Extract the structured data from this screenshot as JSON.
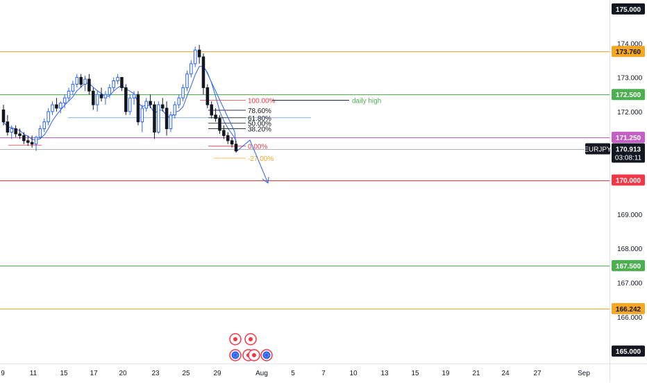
{
  "chart_data": {
    "type": "candlestick",
    "symbol": "EURJPY",
    "current_price": "170.913",
    "countdown": "03:08:11",
    "y_axis": {
      "ylim": [
        164.8,
        175.1
      ],
      "ticks": [
        "174.000",
        "173.000",
        "172.000",
        "169.000",
        "168.000",
        "167.000",
        "166.000"
      ]
    },
    "x_axis": {
      "ticks": [
        "9",
        "11",
        "15",
        "17",
        "20",
        "23",
        "25",
        "29",
        "Aug",
        "5",
        "7",
        "10",
        "13",
        "15",
        "19",
        "21",
        "24",
        "27",
        "Sep"
      ]
    },
    "price_levels": [
      {
        "price": 175.0,
        "label": "175.000",
        "color": "#131722",
        "line": false
      },
      {
        "price": 173.76,
        "label": "173.760",
        "color": "#f5a623",
        "line": true
      },
      {
        "price": 172.5,
        "label": "172.500",
        "color": "#4caf50",
        "line": true
      },
      {
        "price": 171.25,
        "label": "171.250",
        "color": "#c55fc5",
        "line": true
      },
      {
        "price": 170.0,
        "label": "170.000",
        "color": "#f23645",
        "line": true
      },
      {
        "price": 167.5,
        "label": "167.500",
        "color": "#4caf50",
        "line": true
      },
      {
        "price": 166.242,
        "label": "166.242",
        "color": "#f5a623",
        "line": true
      },
      {
        "price": 165.0,
        "label": "165.000",
        "color": "#131722",
        "line": false
      }
    ],
    "fibonacci": [
      {
        "label": "100.00%",
        "price": 172.33,
        "color": "#f23645"
      },
      {
        "label": "78.60%",
        "price": 172.04,
        "color": "#131722"
      },
      {
        "label": "61.80%",
        "price": 171.82,
        "color": "#131722"
      },
      {
        "label": "50.00%",
        "price": 171.66,
        "color": "#131722"
      },
      {
        "label": "38.20%",
        "price": 171.5,
        "color": "#131722"
      },
      {
        "label": "0.00%",
        "price": 170.99,
        "color": "#f23645"
      },
      {
        "label": "-27.00%",
        "price": 170.64,
        "color": "#f5a623"
      }
    ],
    "annotation": "daily high",
    "candles": [
      [
        172.05,
        172.2,
        171.6,
        171.7
      ],
      [
        171.7,
        171.9,
        171.3,
        171.4
      ],
      [
        171.4,
        171.6,
        171.2,
        171.5
      ],
      [
        171.5,
        171.6,
        171.25,
        171.35
      ],
      [
        171.35,
        171.5,
        171.2,
        171.3
      ],
      [
        171.3,
        171.4,
        171.05,
        171.15
      ],
      [
        171.15,
        171.3,
        171.0,
        171.1
      ],
      [
        171.1,
        171.3,
        170.95,
        171.05
      ],
      [
        171.05,
        171.3,
        170.85,
        171.25
      ],
      [
        171.25,
        171.6,
        171.2,
        171.5
      ],
      [
        171.5,
        171.8,
        171.4,
        171.7
      ],
      [
        171.7,
        172.1,
        171.6,
        172.0
      ],
      [
        172.0,
        172.3,
        171.9,
        172.2
      ],
      [
        172.2,
        172.4,
        172.0,
        172.1
      ],
      [
        172.1,
        172.3,
        171.95,
        172.25
      ],
      [
        172.25,
        172.5,
        172.1,
        172.4
      ],
      [
        172.4,
        172.7,
        172.3,
        172.6
      ],
      [
        172.6,
        172.9,
        172.5,
        172.8
      ],
      [
        172.8,
        173.1,
        172.7,
        173.0
      ],
      [
        173.0,
        173.1,
        172.7,
        172.8
      ],
      [
        172.8,
        173.05,
        172.6,
        172.95
      ],
      [
        172.95,
        173.1,
        172.5,
        172.6
      ],
      [
        172.6,
        172.7,
        172.05,
        172.2
      ],
      [
        172.2,
        172.6,
        172.0,
        172.5
      ],
      [
        172.5,
        172.7,
        172.3,
        172.4
      ],
      [
        172.4,
        172.6,
        172.2,
        172.5
      ],
      [
        172.5,
        172.8,
        172.4,
        172.7
      ],
      [
        172.7,
        173.0,
        172.6,
        172.9
      ],
      [
        172.9,
        173.1,
        172.8,
        173.0
      ],
      [
        173.0,
        173.0,
        172.6,
        172.7
      ],
      [
        172.7,
        172.8,
        171.9,
        172.0
      ],
      [
        172.0,
        172.5,
        171.9,
        172.4
      ],
      [
        172.4,
        172.6,
        172.2,
        172.5
      ],
      [
        172.5,
        172.6,
        171.6,
        171.7
      ],
      [
        171.7,
        172.2,
        171.4,
        172.1
      ],
      [
        172.1,
        172.4,
        172.0,
        172.3
      ],
      [
        172.3,
        172.5,
        172.1,
        172.2
      ],
      [
        172.2,
        172.3,
        171.2,
        171.4
      ],
      [
        171.4,
        172.3,
        171.35,
        172.2
      ],
      [
        172.2,
        172.4,
        172.0,
        172.1
      ],
      [
        172.1,
        172.3,
        171.3,
        171.5
      ],
      [
        171.5,
        172.0,
        171.4,
        171.9
      ],
      [
        171.9,
        172.3,
        171.8,
        172.2
      ],
      [
        172.2,
        172.5,
        172.1,
        172.4
      ],
      [
        172.4,
        172.8,
        172.3,
        172.7
      ],
      [
        172.7,
        173.2,
        172.6,
        173.1
      ],
      [
        173.1,
        173.5,
        173.0,
        173.4
      ],
      [
        173.4,
        173.9,
        173.3,
        173.8
      ],
      [
        173.8,
        173.95,
        173.4,
        173.6
      ],
      [
        173.6,
        173.7,
        172.5,
        172.7
      ],
      [
        172.7,
        172.8,
        172.1,
        172.2
      ],
      [
        172.2,
        172.3,
        171.8,
        171.9
      ],
      [
        171.9,
        172.1,
        171.7,
        171.8
      ],
      [
        171.8,
        171.9,
        171.35,
        171.45
      ],
      [
        171.45,
        171.6,
        171.2,
        171.3
      ],
      [
        171.3,
        171.4,
        171.05,
        171.15
      ],
      [
        171.15,
        171.25,
        170.95,
        171.05
      ],
      [
        171.05,
        171.15,
        170.8,
        170.85
      ]
    ]
  }
}
